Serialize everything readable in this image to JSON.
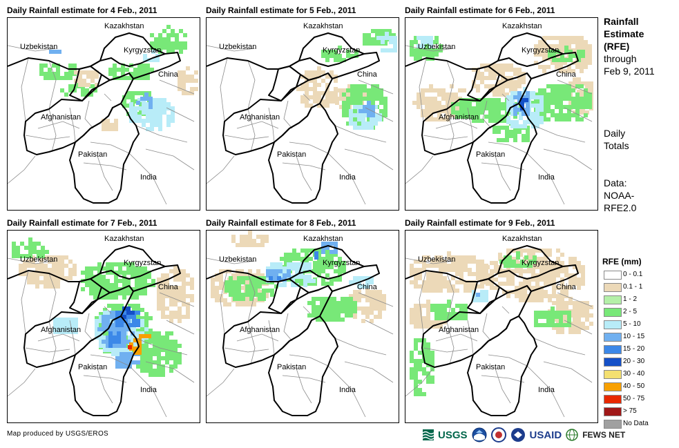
{
  "panels": [
    {
      "title": "Daily Rainfall estimate for 4 Feb., 2011",
      "style": "a"
    },
    {
      "title": "Daily Rainfall estimate for 5 Feb., 2011",
      "style": "b"
    },
    {
      "title": "Daily Rainfall estimate for 6 Feb., 2011",
      "style": "c"
    },
    {
      "title": "Daily Rainfall estimate for 7 Feb., 2011",
      "style": "d"
    },
    {
      "title": "Daily Rainfall estimate for 8 Feb., 2011",
      "style": "e"
    },
    {
      "title": "Daily Rainfall estimate for 9 Feb., 2011",
      "style": "f"
    }
  ],
  "countries": [
    "Kazakhstan",
    "Uzbekistan",
    "Kyrgyzstan",
    "China",
    "Afghanistan",
    "Pakistan",
    "India"
  ],
  "side": {
    "title_lines": [
      "Rainfall",
      "Estimate",
      "(RFE)"
    ],
    "through_lines": [
      "through",
      "Feb 9, 2011"
    ],
    "totals_lines": [
      "Daily",
      "Totals"
    ],
    "data_lines": [
      "Data:",
      "NOAA-",
      "RFE2.0"
    ]
  },
  "legend": {
    "title": "RFE (mm)",
    "items": [
      {
        "label": "0 - 0.1",
        "color": "#ffffff"
      },
      {
        "label": "0.1 - 1",
        "color": "#ecd9b8"
      },
      {
        "label": "1 - 2",
        "color": "#b4f0a8"
      },
      {
        "label": "2 - 5",
        "color": "#78e878"
      },
      {
        "label": "5 - 10",
        "color": "#b8ecf8"
      },
      {
        "label": "10 - 15",
        "color": "#70b0f0"
      },
      {
        "label": "15 - 20",
        "color": "#3c88e8"
      },
      {
        "label": "20 - 30",
        "color": "#1450c8"
      },
      {
        "label": "30 - 40",
        "color": "#f4e070"
      },
      {
        "label": "40 - 50",
        "color": "#f8a000"
      },
      {
        "label": "50 - 75",
        "color": "#e82800"
      },
      {
        "label": "> 75",
        "color": "#a01818"
      },
      {
        "label": "No Data",
        "color": "#a0a0a0"
      }
    ]
  },
  "credit": "Map produced by USGS/EROS",
  "logos": {
    "usgs": "USGS",
    "usaid": "USAID",
    "fewsnet": "FEWS NET"
  }
}
